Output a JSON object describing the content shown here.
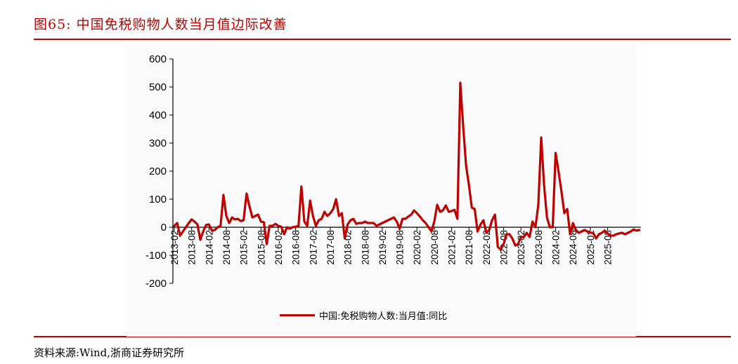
{
  "header": {
    "title": "图65:  中国免税购物人数当月值边际改善"
  },
  "footer": {
    "source": "资料来源:Wind,浙商证券研究所"
  },
  "colors": {
    "accent": "#c00000",
    "series": "#c00000",
    "panel_bg": "#fbfbfb"
  },
  "chart_data": {
    "type": "line",
    "title": "中国免税购物人数当月值边际改善",
    "xlabel": "",
    "ylabel": "",
    "ylim": [
      -200,
      600
    ],
    "yticks": [
      600,
      500,
      400,
      300,
      200,
      100,
      0,
      -100,
      -200
    ],
    "xtick_labels": [
      "2013-02",
      "2013-08",
      "2014-02",
      "2014-08",
      "2015-02",
      "2015-08",
      "2016-02",
      "2016-08",
      "2017-02",
      "2017-08",
      "2018-02",
      "2018-08",
      "2019-02",
      "2019-08",
      "2020-02",
      "2020-08",
      "2021-02",
      "2021-08",
      "2022-02",
      "2022-08",
      "2023-02",
      "2023-08",
      "2024-02",
      "2024-08",
      "2025-02",
      "2025-08"
    ],
    "grid": false,
    "legend_position": "bottom",
    "x_start": "2013-02",
    "x_frequency": "monthly",
    "series": [
      {
        "name": "中国:免税购物人数:当月值:同比",
        "values": [
          5,
          15,
          -30,
          -15,
          0,
          15,
          28,
          20,
          10,
          -45,
          -15,
          8,
          10,
          -12,
          -10,
          0,
          5,
          115,
          40,
          15,
          35,
          28,
          30,
          22,
          25,
          120,
          75,
          35,
          40,
          45,
          20,
          18,
          -60,
          5,
          5,
          12,
          5,
          2,
          -25,
          0,
          -5,
          0,
          2,
          5,
          145,
          20,
          5,
          95,
          40,
          5,
          25,
          30,
          55,
          40,
          50,
          65,
          100,
          40,
          50,
          -40,
          10,
          25,
          30,
          12,
          15,
          15,
          20,
          15,
          15,
          15,
          5,
          10,
          15,
          20,
          25,
          30,
          35,
          20,
          -5,
          30,
          30,
          38,
          45,
          60,
          50,
          38,
          25,
          15,
          0,
          -15,
          20,
          80,
          55,
          60,
          78,
          55,
          58,
          62,
          30,
          515,
          360,
          220,
          150,
          70,
          65,
          -15,
          10,
          25,
          -20,
          -10,
          25,
          45,
          -70,
          -80,
          -60,
          -25,
          -25,
          -40,
          -65,
          -60,
          -35,
          -35,
          -20,
          -35,
          20,
          0,
          80,
          320,
          150,
          35,
          0,
          0,
          265,
          200,
          130,
          50,
          65,
          -25,
          15,
          -10,
          -20,
          -15,
          -10,
          -15,
          -20,
          -20,
          -40,
          -25,
          -20,
          -12,
          -22,
          -30,
          -30,
          -25,
          -22,
          -20,
          -25,
          -20,
          -15,
          -8,
          -12,
          -10
        ]
      }
    ]
  },
  "legend": {
    "items": [
      {
        "label": "中国:免税购物人数:当月值:同比",
        "color": "#c00000"
      }
    ]
  }
}
